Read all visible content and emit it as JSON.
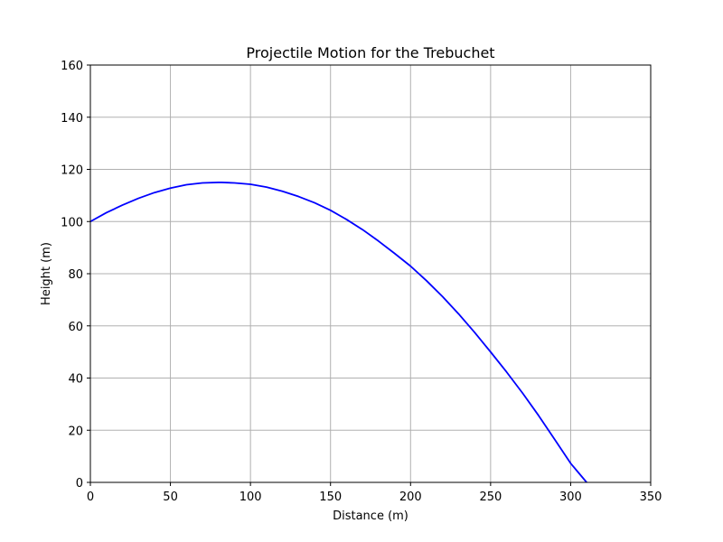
{
  "chart_data": {
    "type": "line",
    "title": "Projectile Motion for the Trebuchet",
    "xlabel": "Distance (m)",
    "ylabel": "Height (m)",
    "xlim": [
      0,
      350
    ],
    "ylim": [
      0,
      160
    ],
    "xticks": [
      0,
      50,
      100,
      150,
      200,
      250,
      300,
      350
    ],
    "yticks": [
      0,
      20,
      40,
      60,
      80,
      100,
      120,
      140,
      160
    ],
    "grid": true,
    "series": [
      {
        "color": "#0000ff",
        "x": [
          0,
          10,
          20,
          30,
          40,
          50,
          60,
          70,
          80,
          82,
          90,
          100,
          110,
          120,
          130,
          140,
          150,
          160,
          170,
          180,
          190,
          200,
          210,
          220,
          230,
          240,
          250,
          260,
          270,
          280,
          290,
          300,
          310
        ],
        "y": [
          100,
          103.4,
          106.3,
          108.9,
          111.1,
          112.8,
          114.1,
          114.8,
          115.0,
          115.0,
          114.8,
          114.3,
          113.2,
          111.6,
          109.6,
          107.2,
          104.3,
          100.8,
          96.9,
          92.5,
          87.8,
          82.9,
          77.3,
          71.2,
          64.6,
          57.5,
          50.0,
          42.3,
          34.2,
          25.6,
          16.5,
          7.3,
          0
        ]
      }
    ]
  }
}
